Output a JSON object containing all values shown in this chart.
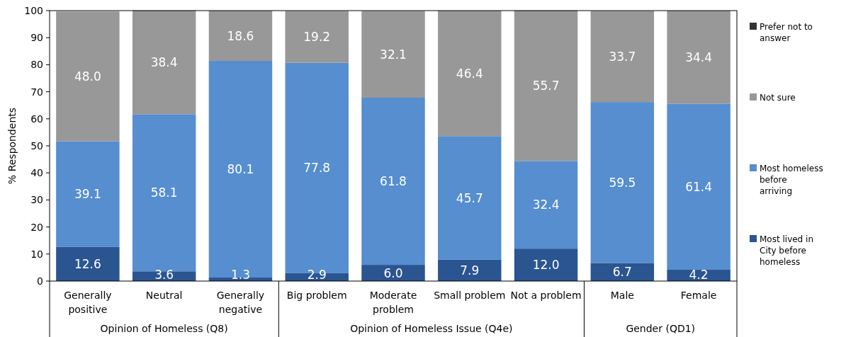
{
  "chart_data": {
    "type": "bar",
    "stacked": true,
    "ylabel": "% Respondents",
    "categories": [
      "Generally positive",
      "Neutral",
      "Generally negative",
      "Big problem",
      "Moderate problem",
      "Small problem",
      "Not a problem",
      "Male",
      "Female"
    ],
    "series": [
      {
        "name": "Most lived in City before homeless",
        "color": "#2a5591",
        "values": [
          12.6,
          3.6,
          1.3,
          2.9,
          6.0,
          7.9,
          12.0,
          6.7,
          4.2
        ],
        "value_labels": [
          "12.6",
          "3.6",
          "1.3",
          "2.9",
          "6.0",
          "7.9",
          "12.0",
          "6.7",
          "4.2"
        ]
      },
      {
        "name": "Most homeless before arriving",
        "color": "#568ecf",
        "values": [
          39.1,
          58.1,
          80.1,
          77.8,
          61.8,
          45.7,
          32.4,
          59.5,
          61.4
        ],
        "value_labels": [
          "39.1",
          "58.1",
          "80.1",
          "77.8",
          "61.8",
          "45.7",
          "32.4",
          "59.5",
          "61.4"
        ]
      },
      {
        "name": "Not sure",
        "color": "#989898",
        "values": [
          48.0,
          38.4,
          18.6,
          19.2,
          32.1,
          46.4,
          55.7,
          33.7,
          34.4
        ],
        "value_labels": [
          "48.0",
          "38.4",
          "18.6",
          "19.2",
          "32.1",
          "46.4",
          "55.7",
          "33.7",
          "34.4"
        ]
      },
      {
        "name": "Prefer not to answer",
        "color": "#333333",
        "values": [
          null,
          null,
          null,
          null,
          null,
          null,
          null,
          null,
          null
        ]
      }
    ],
    "ylim": [
      0,
      100
    ],
    "yticks": [
      0,
      10,
      20,
      30,
      40,
      50,
      60,
      70,
      80,
      90,
      100
    ],
    "grid": false,
    "legend": "right",
    "annotations": [
      "Opinion of Homeless (Q8)",
      "Opinion of Homeless Issue (Q4e)",
      "Gender (QD1)"
    ]
  }
}
